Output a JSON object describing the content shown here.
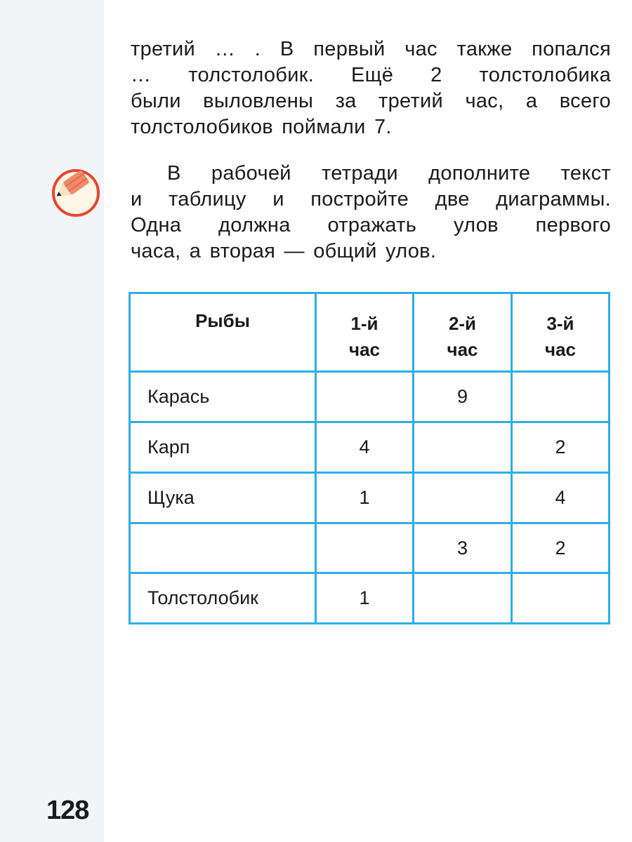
{
  "text": {
    "paragraph1_lines": [
      "третий … . В первый час также попался",
      "… толстолобик. Ещё 2 толстолобика",
      "были выловлены за третий час, а всего",
      "толстолобиков поймали 7."
    ],
    "paragraph2_lines": [
      "В рабочей тетради дополните текст",
      "и таблицу и постройте две диаграммы.",
      "Одна должна отражать улов первого",
      "часа, а вторая — общий улов."
    ]
  },
  "icon": {
    "name": "pencil-icon",
    "ring_color": "#e8452f"
  },
  "table": {
    "headers": [
      "Рыбы",
      "1-й час",
      "2-й час",
      "3-й час"
    ],
    "rows": [
      [
        "Карась",
        "",
        "9",
        ""
      ],
      [
        "Карп",
        "4",
        "",
        "2"
      ],
      [
        "Щука",
        "1",
        "",
        "4"
      ],
      [
        "",
        "",
        "3",
        "2"
      ],
      [
        "Толстолобик",
        "1",
        "",
        ""
      ]
    ],
    "border_color": "#2eaee3"
  },
  "page_number": "128"
}
